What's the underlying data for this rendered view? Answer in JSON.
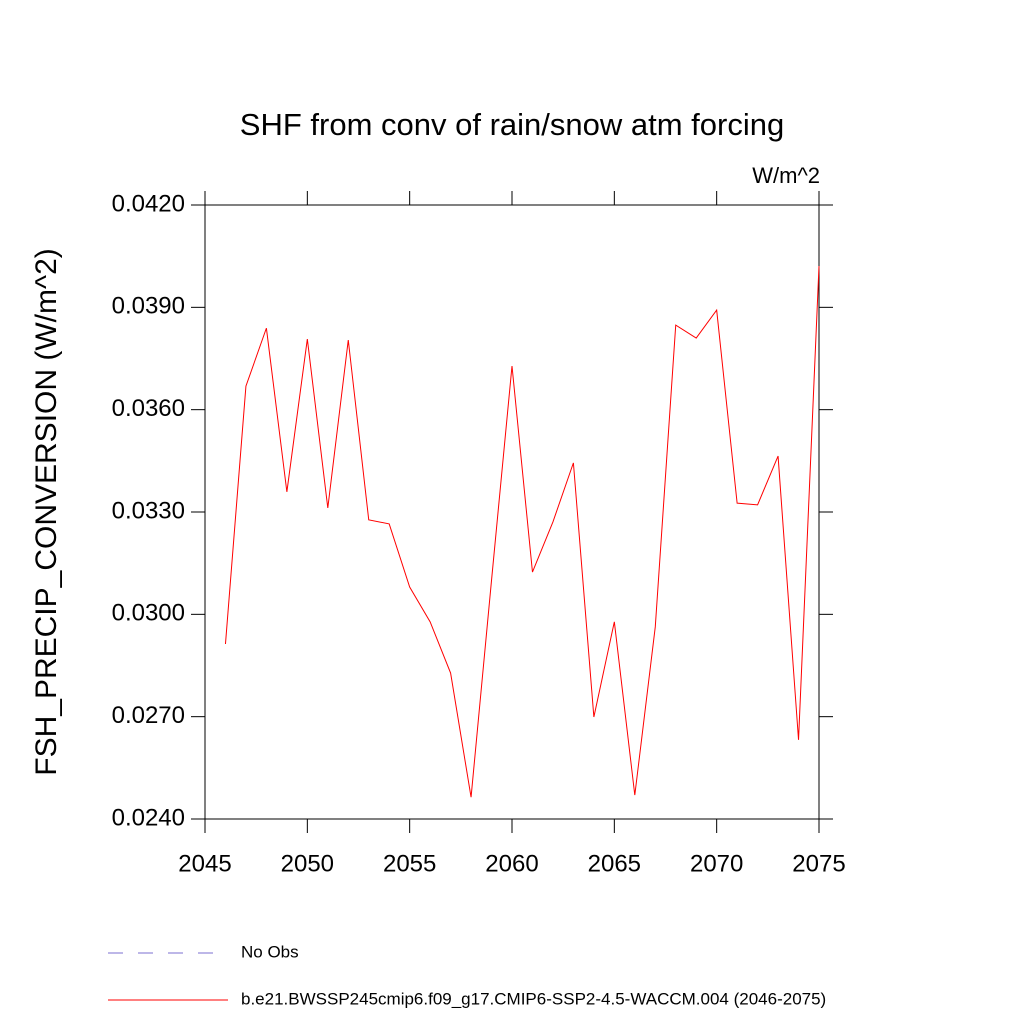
{
  "chart_data": {
    "type": "line",
    "title": "SHF from conv of rain/snow atm forcing",
    "units": "W/m^2",
    "y_label": "FSH_PRECIP_CONVERSION  (W/m^2)",
    "x": [
      2046,
      2047,
      2048,
      2049,
      2050,
      2051,
      2052,
      2053,
      2054,
      2055,
      2056,
      2057,
      2058,
      2059,
      2060,
      2061,
      2062,
      2063,
      2064,
      2065,
      2066,
      2067,
      2068,
      2069,
      2070,
      2071,
      2072,
      2073,
      2074,
      2075
    ],
    "series": [
      {
        "name": "b.e21.BWSSP245cmip6.f09_g17.CMIP6-SSP2-4.5-WACCM.004 (2046-2075)",
        "color": "#ff0000",
        "values": [
          0.02913,
          0.03669,
          0.03839,
          0.03359,
          0.03807,
          0.03312,
          0.03804,
          0.03277,
          0.03265,
          0.0308,
          0.02978,
          0.02828,
          0.02464,
          0.031,
          0.03728,
          0.03124,
          0.03271,
          0.03444,
          0.02699,
          0.02978,
          0.0247,
          0.02963,
          0.03848,
          0.0381,
          0.03892,
          0.03326,
          0.03321,
          0.03464,
          0.02632,
          0.04021
        ]
      }
    ],
    "obs_legend": {
      "name": "No Obs",
      "color": "#7b6fd0"
    },
    "xlim": [
      2045,
      2075
    ],
    "xticks": [
      2045,
      2050,
      2055,
      2060,
      2065,
      2070,
      2075
    ],
    "ylim": [
      0.024,
      0.042
    ],
    "yticks": [
      {
        "value": 0.024,
        "label": "0.0240"
      },
      {
        "value": 0.027,
        "label": "0.0270"
      },
      {
        "value": 0.03,
        "label": "0.0300"
      },
      {
        "value": 0.033,
        "label": "0.0330"
      },
      {
        "value": 0.036,
        "label": "0.0360"
      },
      {
        "value": 0.039,
        "label": "0.0390"
      },
      {
        "value": 0.042,
        "label": "0.0420"
      }
    ]
  }
}
